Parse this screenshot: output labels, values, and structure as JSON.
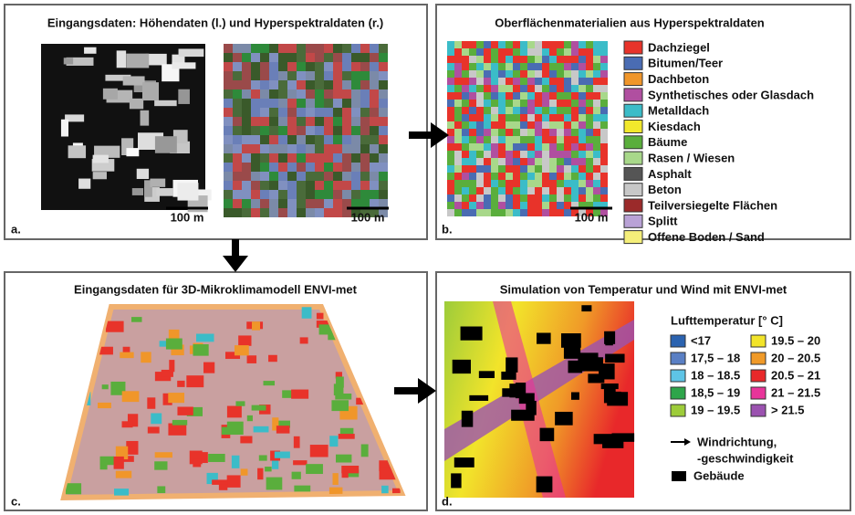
{
  "panels": {
    "a": {
      "title": "Eingangsdaten: Höhendaten (l.) und Hyperspektraldaten (r.)",
      "label": "a.",
      "scale_bars": [
        "100 m",
        "100 m"
      ]
    },
    "b": {
      "title": "Oberflächenmaterialien aus Hyperspektraldaten",
      "label": "b.",
      "scale_bar": "100 m",
      "legend": [
        {
          "label": "Dachziegel",
          "color": "#e8332a"
        },
        {
          "label": "Bitumen/Teer",
          "color": "#4a6cb3"
        },
        {
          "label": "Dachbeton",
          "color": "#f0962a"
        },
        {
          "label": "Synthetisches oder Glasdach",
          "color": "#b04fa0"
        },
        {
          "label": "Metalldach",
          "color": "#3bbcc8"
        },
        {
          "label": "Kiesdach",
          "color": "#f2e82c"
        },
        {
          "label": "Bäume",
          "color": "#5aae3c"
        },
        {
          "label": "Rasen / Wiesen",
          "color": "#a8d88a"
        },
        {
          "label": "Asphalt",
          "color": "#555555"
        },
        {
          "label": "Beton",
          "color": "#c8c8c8"
        },
        {
          "label": "Teilversiegelte Flächen",
          "color": "#9b2a2a"
        },
        {
          "label": "Splitt",
          "color": "#b9a2d6"
        },
        {
          "label": "Offene Boden / Sand",
          "color": "#f5ef7a"
        }
      ]
    },
    "c": {
      "title": "Eingangsdaten für 3D-Mikroklimamodell ENVI-met",
      "label": "c."
    },
    "d": {
      "title": "Simulation von Temperatur und Wind mit ENVI-met",
      "label": "d.",
      "legend_title": "Lufttemperatur [° C]",
      "legend": [
        {
          "label": "<17",
          "color": "#2b63b0"
        },
        {
          "label": "17,5 – 18",
          "color": "#5a7fc4"
        },
        {
          "label": "18 – 18.5",
          "color": "#5ec4e6"
        },
        {
          "label": "18,5 – 19",
          "color": "#2ea54a"
        },
        {
          "label": "19 – 19.5",
          "color": "#9dcc3a"
        },
        {
          "label": "19.5 – 20",
          "color": "#f2e42a"
        },
        {
          "label": "20 – 20.5",
          "color": "#f09a28"
        },
        {
          "label": "20.5 – 21",
          "color": "#e8282a"
        },
        {
          "label": "21 – 21.5",
          "color": "#e8349a"
        },
        {
          "label": "> 21.5",
          "color": "#9b52b0"
        }
      ],
      "wind_label": [
        "Windrichtung,",
        "-geschwindigkeit"
      ],
      "building_label": "Gebäude"
    }
  }
}
